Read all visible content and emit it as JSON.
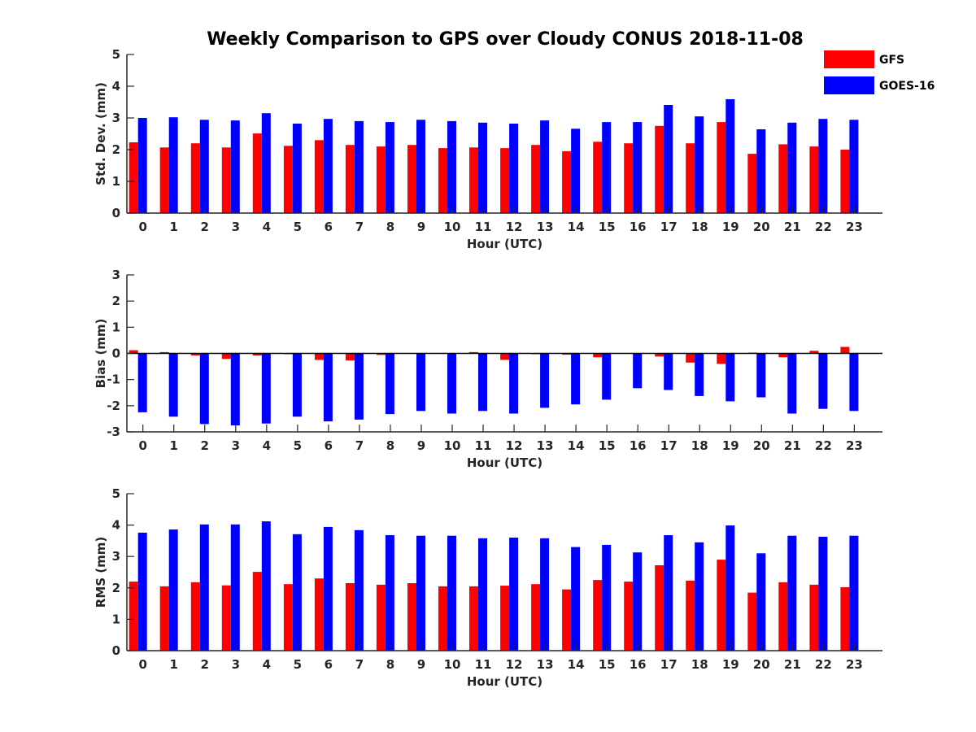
{
  "title": "Weekly Comparison to GPS over Cloudy CONUS 2018-11-08",
  "legend": {
    "placement": "top-right",
    "items": [
      {
        "label": "GFS",
        "color": "#ff0000"
      },
      {
        "label": "GOES-16",
        "color": "#0000ff"
      }
    ]
  },
  "chart_data": [
    {
      "type": "bar",
      "xlabel": "Hour (UTC)",
      "ylabel": "Std. Dev. (mm)",
      "ylim": [
        0,
        5
      ],
      "yticks": [
        "0",
        "1",
        "2",
        "3",
        "4",
        "5"
      ],
      "categories": [
        "0",
        "1",
        "2",
        "3",
        "4",
        "5",
        "6",
        "7",
        "8",
        "9",
        "10",
        "11",
        "12",
        "13",
        "14",
        "15",
        "16",
        "17",
        "18",
        "19",
        "20",
        "21",
        "22",
        "23"
      ],
      "series": [
        {
          "name": "GFS",
          "color": "#ff0000",
          "values": [
            2.23,
            2.07,
            2.2,
            2.07,
            2.51,
            2.12,
            2.3,
            2.15,
            2.1,
            2.15,
            2.05,
            2.07,
            2.05,
            2.15,
            1.95,
            2.25,
            2.2,
            2.75,
            2.2,
            2.87,
            1.87,
            2.17,
            2.1,
            2.0
          ]
        },
        {
          "name": "GOES-16",
          "color": "#0000ff",
          "values": [
            3.0,
            3.02,
            2.94,
            2.92,
            3.15,
            2.82,
            2.97,
            2.9,
            2.87,
            2.94,
            2.9,
            2.85,
            2.82,
            2.92,
            2.66,
            2.87,
            2.87,
            3.41,
            3.05,
            3.59,
            2.64,
            2.85,
            2.97,
            2.94
          ]
        }
      ]
    },
    {
      "type": "bar",
      "xlabel": "Hour (UTC)",
      "ylabel": "Bias (mm)",
      "ylim": [
        -3,
        3
      ],
      "yticks": [
        "-3",
        "-2",
        "-1",
        "0",
        "1",
        "2",
        "3"
      ],
      "categories": [
        "0",
        "1",
        "2",
        "3",
        "4",
        "5",
        "6",
        "7",
        "8",
        "9",
        "10",
        "11",
        "12",
        "13",
        "14",
        "15",
        "16",
        "17",
        "18",
        "19",
        "20",
        "21",
        "22",
        "23"
      ],
      "series": [
        {
          "name": "GFS",
          "color": "#ff0000",
          "values": [
            0.12,
            0.05,
            -0.08,
            -0.21,
            -0.08,
            -0.03,
            -0.25,
            -0.27,
            -0.06,
            -0.02,
            -0.02,
            0.05,
            -0.25,
            -0.03,
            -0.05,
            -0.15,
            -0.02,
            -0.12,
            -0.35,
            -0.4,
            0.03,
            -0.15,
            0.1,
            0.25
          ]
        },
        {
          "name": "GOES-16",
          "color": "#0000ff",
          "values": [
            -2.25,
            -2.42,
            -2.7,
            -2.75,
            -2.68,
            -2.42,
            -2.6,
            -2.53,
            -2.32,
            -2.2,
            -2.3,
            -2.2,
            -2.3,
            -2.08,
            -1.95,
            -1.77,
            -1.33,
            -1.4,
            -1.63,
            -1.83,
            -1.68,
            -2.3,
            -2.12,
            -2.2
          ]
        }
      ]
    },
    {
      "type": "bar",
      "xlabel": "Hour (UTC)",
      "ylabel": "RMS (mm)",
      "ylim": [
        0,
        5
      ],
      "yticks": [
        "0",
        "1",
        "2",
        "3",
        "4",
        "5"
      ],
      "categories": [
        "0",
        "1",
        "2",
        "3",
        "4",
        "5",
        "6",
        "7",
        "8",
        "9",
        "10",
        "11",
        "12",
        "13",
        "14",
        "15",
        "16",
        "17",
        "18",
        "19",
        "20",
        "21",
        "22",
        "23"
      ],
      "series": [
        {
          "name": "GFS",
          "color": "#ff0000",
          "values": [
            2.2,
            2.05,
            2.18,
            2.08,
            2.51,
            2.12,
            2.3,
            2.15,
            2.1,
            2.15,
            2.05,
            2.05,
            2.07,
            2.12,
            1.95,
            2.25,
            2.2,
            2.72,
            2.23,
            2.9,
            1.85,
            2.18,
            2.1,
            2.02
          ]
        },
        {
          "name": "GOES-16",
          "color": "#0000ff",
          "values": [
            3.76,
            3.86,
            4.02,
            4.02,
            4.12,
            3.71,
            3.94,
            3.84,
            3.68,
            3.66,
            3.66,
            3.58,
            3.6,
            3.58,
            3.3,
            3.37,
            3.13,
            3.68,
            3.45,
            3.99,
            3.1,
            3.66,
            3.63,
            3.66
          ]
        }
      ]
    }
  ]
}
